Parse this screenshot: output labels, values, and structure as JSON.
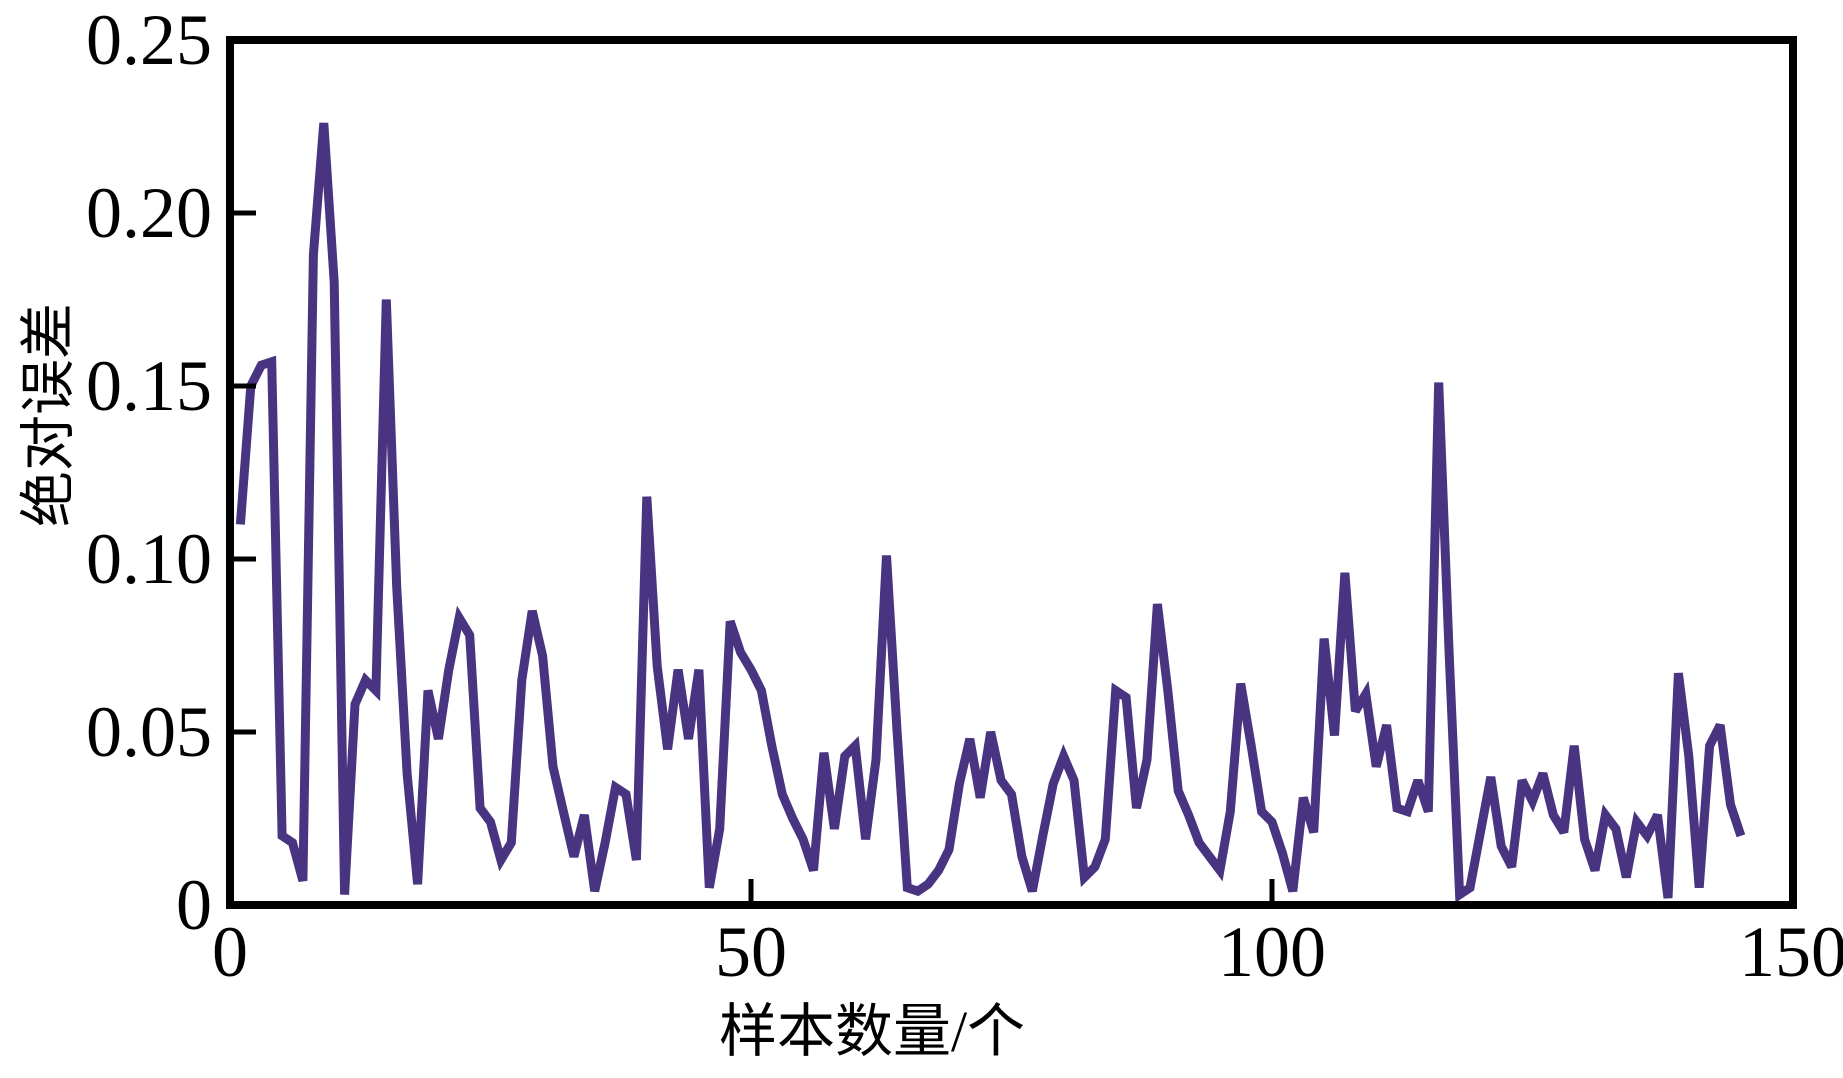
{
  "chart_data": {
    "type": "line",
    "title": "",
    "xlabel": "样本数量/个",
    "ylabel": "绝对误差",
    "xlim": [
      0,
      150
    ],
    "ylim": [
      0,
      0.25
    ],
    "x_ticks": [
      0,
      50,
      100,
      150
    ],
    "x_tick_labels": [
      "0",
      "50",
      "100",
      "150"
    ],
    "y_ticks": [
      0,
      0.05,
      0.1,
      0.15,
      0.2,
      0.25
    ],
    "y_tick_labels": [
      "0",
      "0.05",
      "0.10",
      "0.15",
      "0.20",
      "0.25"
    ],
    "grid": false,
    "legend": "none",
    "line_color": "#483480",
    "axis_color": "#000000",
    "x_start": 1,
    "x_step": 1,
    "values": [
      0.11,
      0.15,
      0.156,
      0.157,
      0.02,
      0.018,
      0.007,
      0.188,
      0.226,
      0.18,
      0.003,
      0.058,
      0.065,
      0.062,
      0.175,
      0.092,
      0.038,
      0.006,
      0.062,
      0.048,
      0.068,
      0.083,
      0.078,
      0.028,
      0.024,
      0.013,
      0.018,
      0.065,
      0.085,
      0.072,
      0.04,
      0.027,
      0.014,
      0.026,
      0.004,
      0.018,
      0.034,
      0.032,
      0.013,
      0.118,
      0.069,
      0.045,
      0.068,
      0.048,
      0.068,
      0.005,
      0.022,
      0.082,
      0.073,
      0.068,
      0.062,
      0.046,
      0.032,
      0.025,
      0.019,
      0.01,
      0.044,
      0.022,
      0.043,
      0.046,
      0.019,
      0.042,
      0.101,
      0.051,
      0.005,
      0.004,
      0.006,
      0.01,
      0.016,
      0.035,
      0.048,
      0.031,
      0.05,
      0.036,
      0.032,
      0.014,
      0.004,
      0.02,
      0.035,
      0.043,
      0.036,
      0.008,
      0.011,
      0.019,
      0.062,
      0.06,
      0.028,
      0.042,
      0.087,
      0.062,
      0.033,
      0.026,
      0.018,
      0.014,
      0.01,
      0.027,
      0.064,
      0.046,
      0.027,
      0.024,
      0.015,
      0.004,
      0.031,
      0.021,
      0.077,
      0.049,
      0.096,
      0.056,
      0.061,
      0.04,
      0.052,
      0.028,
      0.027,
      0.036,
      0.027,
      0.151,
      0.073,
      0.003,
      0.005,
      0.021,
      0.037,
      0.017,
      0.011,
      0.036,
      0.03,
      0.038,
      0.026,
      0.021,
      0.046,
      0.019,
      0.01,
      0.026,
      0.022,
      0.008,
      0.024,
      0.02,
      0.026,
      0.002,
      0.067,
      0.043,
      0.005,
      0.046,
      0.052,
      0.029,
      0.02
    ]
  }
}
